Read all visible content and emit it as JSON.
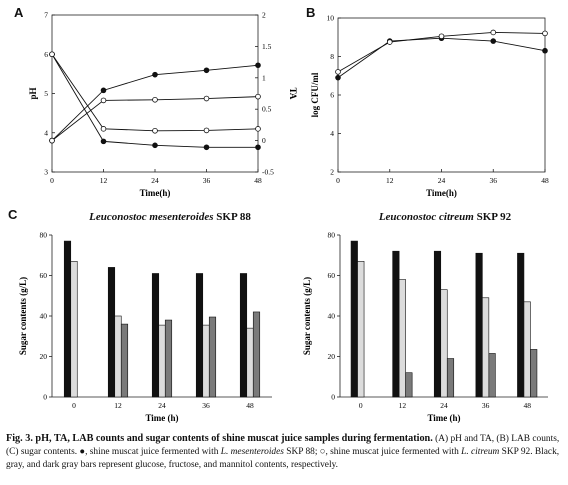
{
  "panels": [
    {
      "label": "A"
    },
    {
      "label": "B"
    },
    {
      "label": "C"
    }
  ],
  "chart_data": [
    {
      "type": "line",
      "panel": "A",
      "xlabel": "Time(h)",
      "ylabel": "pH",
      "y2label": "TA",
      "x": [
        0,
        12,
        24,
        36,
        48
      ],
      "xlim": [
        0,
        48
      ],
      "ylim": [
        3,
        7
      ],
      "y2lim": [
        -0.5,
        2
      ],
      "xticks": [
        "0",
        "12",
        "24",
        "36",
        "48"
      ],
      "yticks": [
        "3",
        "4",
        "5",
        "6",
        "7"
      ],
      "y2ticks": [
        "-0.5",
        "0",
        "0.5",
        "1",
        "1.5",
        "2"
      ],
      "series": [
        {
          "axis": "left",
          "marker": "filled-circle",
          "values": [
            6.0,
            3.78,
            3.68,
            3.63,
            3.63
          ]
        },
        {
          "axis": "left",
          "marker": "open-circle",
          "values": [
            6.0,
            4.1,
            4.05,
            4.06,
            4.1
          ]
        },
        {
          "axis": "right",
          "marker": "filled-circle",
          "values": [
            0.0,
            0.8,
            1.05,
            1.12,
            1.2
          ]
        },
        {
          "axis": "right",
          "marker": "open-circle",
          "values": [
            0.0,
            0.64,
            0.65,
            0.67,
            0.7
          ]
        }
      ]
    },
    {
      "type": "line",
      "panel": "B",
      "xlabel": "Time(h)",
      "ylabel": "log CFU/ml",
      "x": [
        0,
        12,
        24,
        36,
        48
      ],
      "xlim": [
        0,
        48
      ],
      "ylim": [
        2,
        10
      ],
      "xticks": [
        "0",
        "12",
        "24",
        "36",
        "48"
      ],
      "yticks": [
        "2",
        "4",
        "6",
        "8",
        "10"
      ],
      "series": [
        {
          "marker": "filled-circle",
          "values": [
            6.9,
            8.8,
            8.95,
            8.8,
            8.3
          ]
        },
        {
          "marker": "open-circle",
          "values": [
            7.2,
            8.75,
            9.05,
            9.25,
            9.2
          ]
        }
      ]
    },
    {
      "type": "bar",
      "panel": "C",
      "title_italic": "Leuconostoc mesenteroides",
      "title_rest": " SKP 88",
      "xlabel": "Time (h)",
      "ylabel": "Sugar contents (g/L)",
      "categories": [
        "0",
        "12",
        "24",
        "36",
        "48"
      ],
      "ylim": [
        0,
        80
      ],
      "yticks": [
        "0",
        "20",
        "40",
        "60",
        "80"
      ],
      "series": [
        {
          "color": "#111111",
          "values": [
            77,
            64,
            61,
            61,
            61
          ]
        },
        {
          "color": "#dcdcdc",
          "values": [
            67,
            40,
            35.5,
            35.5,
            34
          ]
        },
        {
          "color": "#7a7a7a",
          "values": [
            null,
            36,
            38,
            39.5,
            42
          ]
        }
      ]
    },
    {
      "type": "bar",
      "panel": "C",
      "title_italic": "Leuconostoc citreum",
      "title_rest": " SKP 92",
      "xlabel": "Time (h)",
      "ylabel": "Sugar contents (g/L)",
      "categories": [
        "0",
        "12",
        "24",
        "36",
        "48"
      ],
      "ylim": [
        0,
        80
      ],
      "yticks": [
        "0",
        "20",
        "40",
        "60",
        "80"
      ],
      "series": [
        {
          "color": "#111111",
          "values": [
            77,
            72,
            72,
            71,
            71
          ]
        },
        {
          "color": "#dcdcdc",
          "values": [
            67,
            58,
            53,
            49,
            47
          ]
        },
        {
          "color": "#7a7a7a",
          "values": [
            null,
            12,
            19,
            21.5,
            23.5
          ]
        }
      ]
    }
  ],
  "caption": {
    "lead": "Fig. 3. pH, TA, LAB counts and sugar contents of shine muscat juice samples during fermentation.",
    "p1": " (A) pH and TA, (B) LAB counts, (C) sugar contents. ",
    "sym1": "●",
    "p2": ", shine muscat juice fermented with ",
    "sp1": "L. mesenteroides",
    "p3": " SKP 88; ",
    "sym2": "○",
    "p4": ", shine muscat juice fermented with ",
    "sp2": "L. citreum",
    "p5": " SKP 92. Black, gray, and dark gray bars represent glucose, fructose, and mannitol contents, respectively."
  }
}
